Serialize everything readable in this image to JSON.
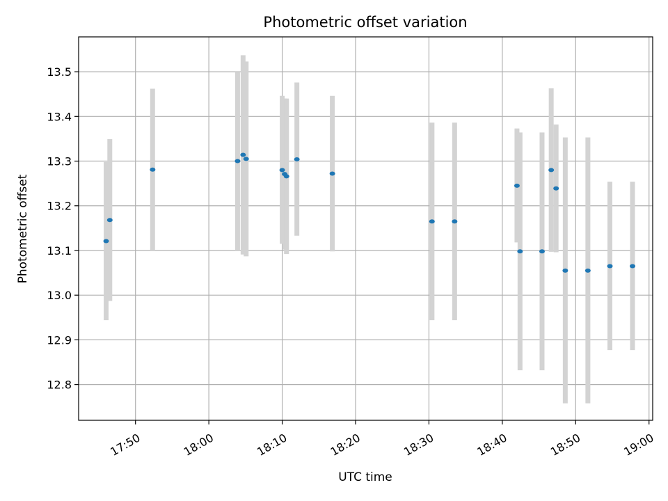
{
  "chart_data": {
    "type": "scatter",
    "title": "Photometric offset variation",
    "xlabel": "UTC time",
    "ylabel": "Photometric offset",
    "x_unit": "UTC time (HH:MM)",
    "xlim": [
      "17:42:15",
      "19:00:30"
    ],
    "ylim": [
      12.72,
      13.578
    ],
    "grid": true,
    "x_ticks": [
      "17:50",
      "18:00",
      "18:10",
      "18:20",
      "18:30",
      "18:40",
      "18:50",
      "19:00"
    ],
    "y_ticks": [
      "12.8",
      "12.9",
      "13.0",
      "13.1",
      "13.2",
      "13.3",
      "13.4",
      "13.5"
    ],
    "colors": {
      "marker": "#1f77b4",
      "errorbar": "#d3d3d3",
      "grid": "#b0b0b0"
    },
    "series": [
      {
        "points": [
          {
            "x": "17:46:00",
            "y": 13.121,
            "y_low": 12.944,
            "y_high": 13.298
          },
          {
            "x": "17:46:30",
            "y": 13.168,
            "y_low": 12.987,
            "y_high": 13.349
          },
          {
            "x": "17:52:20",
            "y": 13.281,
            "y_low": 13.1,
            "y_high": 13.462
          },
          {
            "x": "18:03:55",
            "y": 13.3,
            "y_low": 13.1,
            "y_high": 13.5
          },
          {
            "x": "18:04:40",
            "y": 13.314,
            "y_low": 13.091,
            "y_high": 13.537
          },
          {
            "x": "18:05:05",
            "y": 13.305,
            "y_low": 13.087,
            "y_high": 13.523
          },
          {
            "x": "18:10:00",
            "y": 13.28,
            "y_low": 13.115,
            "y_high": 13.446
          },
          {
            "x": "18:10:20",
            "y": 13.271,
            "y_low": 13.102,
            "y_high": 13.44
          },
          {
            "x": "18:10:35",
            "y": 13.266,
            "y_low": 13.092,
            "y_high": 13.44
          },
          {
            "x": "18:12:00",
            "y": 13.304,
            "y_low": 13.133,
            "y_high": 13.476
          },
          {
            "x": "18:16:50",
            "y": 13.272,
            "y_low": 13.098,
            "y_high": 13.446
          },
          {
            "x": "18:30:25",
            "y": 13.165,
            "y_low": 12.944,
            "y_high": 13.386
          },
          {
            "x": "18:33:30",
            "y": 13.165,
            "y_low": 12.944,
            "y_high": 13.386
          },
          {
            "x": "18:42:00",
            "y": 13.245,
            "y_low": 13.118,
            "y_high": 13.373
          },
          {
            "x": "18:42:25",
            "y": 13.098,
            "y_low": 12.832,
            "y_high": 13.364
          },
          {
            "x": "18:45:25",
            "y": 13.098,
            "y_low": 12.832,
            "y_high": 13.364
          },
          {
            "x": "18:46:40",
            "y": 13.28,
            "y_low": 13.097,
            "y_high": 13.463
          },
          {
            "x": "18:47:20",
            "y": 13.239,
            "y_low": 13.096,
            "y_high": 13.382
          },
          {
            "x": "18:48:35",
            "y": 13.055,
            "y_low": 12.758,
            "y_high": 13.353
          },
          {
            "x": "18:51:40",
            "y": 13.055,
            "y_low": 12.758,
            "y_high": 13.353
          },
          {
            "x": "18:54:40",
            "y": 13.065,
            "y_low": 12.877,
            "y_high": 13.254
          },
          {
            "x": "18:57:45",
            "y": 13.065,
            "y_low": 12.877,
            "y_high": 13.254
          }
        ]
      }
    ]
  }
}
